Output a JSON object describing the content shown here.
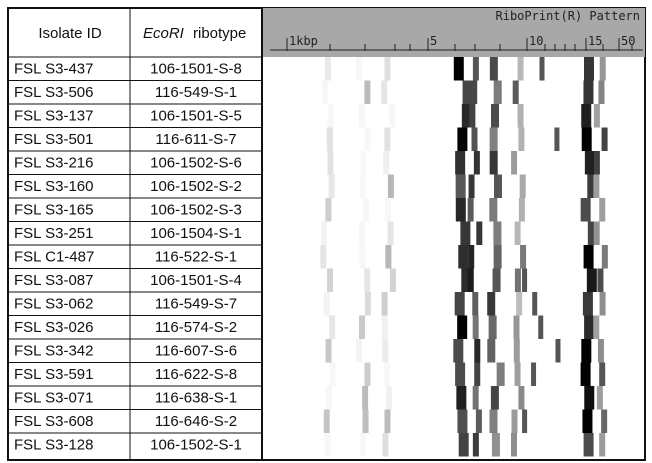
{
  "table": {
    "header": {
      "isolate_id": "Isolate ID",
      "ribotype_enzyme": "EcoRI",
      "ribotype_word": "ribotype"
    },
    "rows": [
      [
        "FSL S3-437",
        "106-1501-S-8"
      ],
      [
        "FSL S3-506",
        "116-549-S-1"
      ],
      [
        "FSL S3-137",
        "106-1501-S-5"
      ],
      [
        "FSL S3-501",
        "116-611-S-7"
      ],
      [
        "FSL S3-216",
        "106-1502-S-6"
      ],
      [
        "FSL S3-160",
        "106-1502-S-2"
      ],
      [
        "FSL S3-165",
        "106-1502-S-3"
      ],
      [
        "FSL S3-251",
        "106-1504-S-1"
      ],
      [
        "FSL C1-487",
        "116-522-S-1"
      ],
      [
        "FSL S3-087",
        "106-1501-S-4"
      ],
      [
        "FSL S3-062",
        "116-549-S-7"
      ],
      [
        "FSL S3-026",
        "116-574-S-2"
      ],
      [
        "FSL S3-342",
        "116-607-S-6"
      ],
      [
        "FSL S3-591",
        "116-622-S-8"
      ],
      [
        "FSL S3-071",
        "116-638-S-1"
      ],
      [
        "FSL S3-608",
        "116-646-S-2"
      ],
      [
        "FSL S3-128",
        "106-1502-S-1"
      ]
    ]
  },
  "pattern": {
    "title": "RiboPrint(R) Pattern",
    "scale_labels": [
      "1kbp",
      "5",
      "10",
      "15",
      "50"
    ]
  }
}
